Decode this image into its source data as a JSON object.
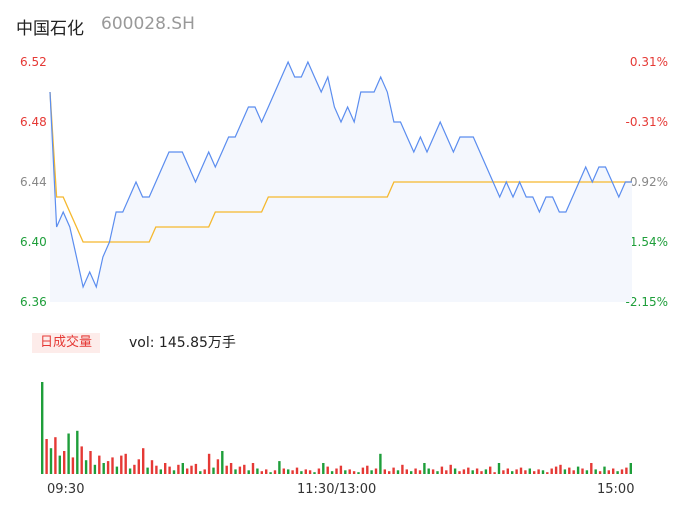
{
  "header": {
    "name": "中国石化",
    "code": "600028.SH"
  },
  "badge_label": "日成交量",
  "volume_text": "vol: 145.85万手",
  "colors": {
    "price_line": "#5b8def",
    "avg_line": "#f5b82e",
    "up": "#e53935",
    "down": "#1e9e3a",
    "neutral": "#888888"
  },
  "chart_data": {
    "type": "line",
    "ylim": [
      6.36,
      6.52
    ],
    "price_ticks": [
      "6.52",
      "6.48",
      "6.44",
      "6.40",
      "6.36"
    ],
    "pct_ticks": [
      "0.31%",
      "-0.31%",
      "-0.92%",
      "-1.54%",
      "-2.15%"
    ],
    "time_ticks": [
      "09:30",
      "11:30/13:00",
      "15:00"
    ],
    "series": [
      {
        "values": [
          6.5,
          6.41,
          6.42,
          6.41,
          6.39,
          6.37,
          6.38,
          6.37,
          6.39,
          6.4,
          6.42,
          6.42,
          6.43,
          6.44,
          6.43,
          6.43,
          6.44,
          6.45,
          6.46,
          6.46,
          6.46,
          6.45,
          6.44,
          6.45,
          6.46,
          6.45,
          6.46,
          6.47,
          6.47,
          6.48,
          6.49,
          6.49,
          6.48,
          6.49,
          6.5,
          6.51,
          6.52,
          6.51,
          6.51,
          6.52,
          6.51,
          6.5,
          6.51,
          6.49,
          6.48,
          6.49,
          6.48,
          6.5,
          6.5,
          6.5,
          6.51,
          6.5,
          6.48,
          6.48,
          6.47,
          6.46,
          6.47,
          6.46,
          6.47,
          6.48,
          6.47,
          6.46,
          6.47,
          6.47,
          6.47,
          6.46,
          6.45,
          6.44,
          6.43,
          6.44,
          6.43,
          6.44,
          6.43,
          6.43,
          6.42,
          6.43,
          6.43,
          6.42,
          6.42,
          6.43,
          6.44,
          6.45,
          6.44,
          6.45,
          6.45,
          6.44,
          6.43,
          6.44,
          6.44
        ]
      },
      {
        "values": [
          6.5,
          6.43,
          6.43,
          6.42,
          6.41,
          6.4,
          6.4,
          6.4,
          6.4,
          6.4,
          6.4,
          6.4,
          6.4,
          6.4,
          6.4,
          6.4,
          6.41,
          6.41,
          6.41,
          6.41,
          6.41,
          6.41,
          6.41,
          6.41,
          6.41,
          6.42,
          6.42,
          6.42,
          6.42,
          6.42,
          6.42,
          6.42,
          6.42,
          6.43,
          6.43,
          6.43,
          6.43,
          6.43,
          6.43,
          6.43,
          6.43,
          6.43,
          6.43,
          6.43,
          6.43,
          6.43,
          6.43,
          6.43,
          6.43,
          6.43,
          6.43,
          6.43,
          6.44,
          6.44,
          6.44,
          6.44,
          6.44,
          6.44,
          6.44,
          6.44,
          6.44,
          6.44,
          6.44,
          6.44,
          6.44,
          6.44,
          6.44,
          6.44,
          6.44,
          6.44,
          6.44,
          6.44,
          6.44,
          6.44,
          6.44,
          6.44,
          6.44,
          6.44,
          6.44,
          6.44,
          6.44,
          6.44,
          6.44,
          6.44,
          6.44,
          6.44,
          6.44,
          6.44,
          6.44
        ]
      }
    ],
    "volume_bars": [
      {
        "v": 100,
        "c": "g"
      },
      {
        "v": 38,
        "c": "r"
      },
      {
        "v": 28,
        "c": "g"
      },
      {
        "v": 40,
        "c": "r"
      },
      {
        "v": 20,
        "c": "g"
      },
      {
        "v": 25,
        "c": "r"
      },
      {
        "v": 44,
        "c": "g"
      },
      {
        "v": 18,
        "c": "r"
      },
      {
        "v": 47,
        "c": "g"
      },
      {
        "v": 30,
        "c": "r"
      },
      {
        "v": 15,
        "c": "g"
      },
      {
        "v": 25,
        "c": "r"
      },
      {
        "v": 10,
        "c": "g"
      },
      {
        "v": 20,
        "c": "r"
      },
      {
        "v": 12,
        "c": "g"
      },
      {
        "v": 14,
        "c": "r"
      },
      {
        "v": 18,
        "c": "r"
      },
      {
        "v": 8,
        "c": "g"
      },
      {
        "v": 20,
        "c": "r"
      },
      {
        "v": 22,
        "c": "r"
      },
      {
        "v": 6,
        "c": "g"
      },
      {
        "v": 10,
        "c": "r"
      },
      {
        "v": 16,
        "c": "r"
      },
      {
        "v": 28,
        "c": "r"
      },
      {
        "v": 7,
        "c": "g"
      },
      {
        "v": 15,
        "c": "r"
      },
      {
        "v": 9,
        "c": "r"
      },
      {
        "v": 5,
        "c": "g"
      },
      {
        "v": 12,
        "c": "r"
      },
      {
        "v": 8,
        "c": "r"
      },
      {
        "v": 4,
        "c": "g"
      },
      {
        "v": 10,
        "c": "r"
      },
      {
        "v": 12,
        "c": "g"
      },
      {
        "v": 6,
        "c": "r"
      },
      {
        "v": 9,
        "c": "r"
      },
      {
        "v": 11,
        "c": "r"
      },
      {
        "v": 3,
        "c": "g"
      },
      {
        "v": 5,
        "c": "r"
      },
      {
        "v": 22,
        "c": "r"
      },
      {
        "v": 7,
        "c": "g"
      },
      {
        "v": 16,
        "c": "r"
      },
      {
        "v": 25,
        "c": "g"
      },
      {
        "v": 9,
        "c": "r"
      },
      {
        "v": 12,
        "c": "r"
      },
      {
        "v": 5,
        "c": "g"
      },
      {
        "v": 8,
        "c": "r"
      },
      {
        "v": 10,
        "c": "r"
      },
      {
        "v": 4,
        "c": "g"
      },
      {
        "v": 12,
        "c": "r"
      },
      {
        "v": 6,
        "c": "g"
      },
      {
        "v": 3,
        "c": "r"
      },
      {
        "v": 5,
        "c": "r"
      },
      {
        "v": 2,
        "c": "g"
      },
      {
        "v": 4,
        "c": "r"
      },
      {
        "v": 14,
        "c": "g"
      },
      {
        "v": 6,
        "c": "r"
      },
      {
        "v": 5,
        "c": "g"
      },
      {
        "v": 4,
        "c": "r"
      },
      {
        "v": 7,
        "c": "r"
      },
      {
        "v": 3,
        "c": "g"
      },
      {
        "v": 5,
        "c": "r"
      },
      {
        "v": 4,
        "c": "r"
      },
      {
        "v": 2,
        "c": "g"
      },
      {
        "v": 6,
        "c": "r"
      },
      {
        "v": 12,
        "c": "g"
      },
      {
        "v": 8,
        "c": "r"
      },
      {
        "v": 3,
        "c": "g"
      },
      {
        "v": 6,
        "c": "r"
      },
      {
        "v": 9,
        "c": "r"
      },
      {
        "v": 4,
        "c": "g"
      },
      {
        "v": 5,
        "c": "r"
      },
      {
        "v": 3,
        "c": "r"
      },
      {
        "v": 2,
        "c": "g"
      },
      {
        "v": 7,
        "c": "r"
      },
      {
        "v": 9,
        "c": "r"
      },
      {
        "v": 4,
        "c": "g"
      },
      {
        "v": 6,
        "c": "r"
      },
      {
        "v": 22,
        "c": "g"
      },
      {
        "v": 5,
        "c": "r"
      },
      {
        "v": 3,
        "c": "r"
      },
      {
        "v": 7,
        "c": "r"
      },
      {
        "v": 4,
        "c": "g"
      },
      {
        "v": 10,
        "c": "r"
      },
      {
        "v": 5,
        "c": "r"
      },
      {
        "v": 3,
        "c": "g"
      },
      {
        "v": 6,
        "c": "r"
      },
      {
        "v": 4,
        "c": "r"
      },
      {
        "v": 12,
        "c": "g"
      },
      {
        "v": 6,
        "c": "g"
      },
      {
        "v": 5,
        "c": "r"
      },
      {
        "v": 3,
        "c": "g"
      },
      {
        "v": 8,
        "c": "r"
      },
      {
        "v": 4,
        "c": "r"
      },
      {
        "v": 10,
        "c": "r"
      },
      {
        "v": 6,
        "c": "g"
      },
      {
        "v": 3,
        "c": "r"
      },
      {
        "v": 5,
        "c": "r"
      },
      {
        "v": 7,
        "c": "r"
      },
      {
        "v": 4,
        "c": "g"
      },
      {
        "v": 6,
        "c": "r"
      },
      {
        "v": 3,
        "c": "r"
      },
      {
        "v": 5,
        "c": "g"
      },
      {
        "v": 8,
        "c": "r"
      },
      {
        "v": 2,
        "c": "r"
      },
      {
        "v": 12,
        "c": "g"
      },
      {
        "v": 4,
        "c": "r"
      },
      {
        "v": 6,
        "c": "r"
      },
      {
        "v": 3,
        "c": "g"
      },
      {
        "v": 5,
        "c": "r"
      },
      {
        "v": 7,
        "c": "r"
      },
      {
        "v": 4,
        "c": "r"
      },
      {
        "v": 6,
        "c": "g"
      },
      {
        "v": 3,
        "c": "r"
      },
      {
        "v": 5,
        "c": "r"
      },
      {
        "v": 4,
        "c": "g"
      },
      {
        "v": 2,
        "c": "r"
      },
      {
        "v": 6,
        "c": "r"
      },
      {
        "v": 8,
        "c": "r"
      },
      {
        "v": 10,
        "c": "r"
      },
      {
        "v": 5,
        "c": "g"
      },
      {
        "v": 7,
        "c": "r"
      },
      {
        "v": 4,
        "c": "r"
      },
      {
        "v": 8,
        "c": "g"
      },
      {
        "v": 6,
        "c": "r"
      },
      {
        "v": 4,
        "c": "g"
      },
      {
        "v": 12,
        "c": "r"
      },
      {
        "v": 5,
        "c": "g"
      },
      {
        "v": 3,
        "c": "r"
      },
      {
        "v": 8,
        "c": "g"
      },
      {
        "v": 4,
        "c": "r"
      },
      {
        "v": 6,
        "c": "r"
      },
      {
        "v": 3,
        "c": "g"
      },
      {
        "v": 5,
        "c": "r"
      },
      {
        "v": 7,
        "c": "r"
      },
      {
        "v": 12,
        "c": "g"
      }
    ]
  }
}
